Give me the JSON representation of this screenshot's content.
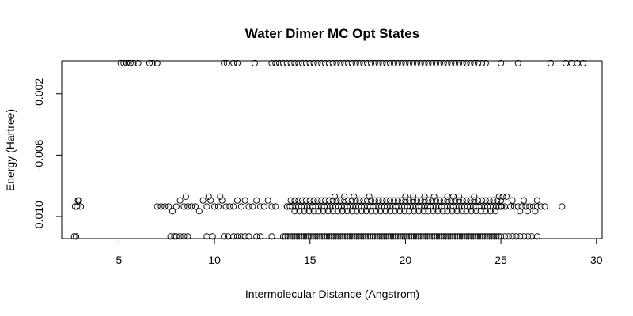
{
  "chart_data": {
    "type": "scatter",
    "title": "Water Dimer MC Opt States",
    "xlabel": "Intermolecular Distance (Angstrom)",
    "ylabel": "Energy (Hartree)",
    "xlim": [
      2.0,
      30.3
    ],
    "ylim": [
      -0.01144,
      0.00015
    ],
    "x_ticks": [
      5,
      10,
      15,
      20,
      25,
      30
    ],
    "x_tick_labels": [
      "5",
      "10",
      "15",
      "20",
      "25",
      "30"
    ],
    "y_ticks": [
      -0.002,
      -0.006,
      -0.01
    ],
    "y_tick_labels": [
      "-0.002",
      "-0.006",
      "-0.010"
    ],
    "grid": false,
    "legend": "none",
    "marker": "open-circle",
    "energy_levels": [
      0.0,
      -0.0087,
      -0.00895,
      -0.00935,
      -0.00965,
      -0.0113
    ],
    "series": [
      {
        "points": [
          [
            5.1,
            0.0
          ],
          [
            5.25,
            0.0
          ],
          [
            5.4,
            0.0
          ],
          [
            5.5,
            0.0
          ],
          [
            5.6,
            0.0
          ],
          [
            5.75,
            0.0
          ],
          [
            6.0,
            0.0
          ],
          [
            6.6,
            0.0
          ],
          [
            6.75,
            0.0
          ],
          [
            7.0,
            0.0
          ],
          [
            10.5,
            0.0
          ],
          [
            10.65,
            0.0
          ],
          [
            11.0,
            0.0
          ],
          [
            11.2,
            0.0
          ],
          [
            12.1,
            0.0
          ],
          [
            13.0,
            0.0
          ],
          [
            13.2,
            0.0
          ],
          [
            13.4,
            0.0
          ],
          [
            13.6,
            0.0
          ],
          [
            13.8,
            0.0
          ],
          [
            14.0,
            0.0
          ],
          [
            14.2,
            0.0
          ],
          [
            14.4,
            0.0
          ],
          [
            14.6,
            0.0
          ],
          [
            14.8,
            0.0
          ],
          [
            15.0,
            0.0
          ],
          [
            15.2,
            0.0
          ],
          [
            15.4,
            0.0
          ],
          [
            15.6,
            0.0
          ],
          [
            15.8,
            0.0
          ],
          [
            16.0,
            0.0
          ],
          [
            16.2,
            0.0
          ],
          [
            16.4,
            0.0
          ],
          [
            16.6,
            0.0
          ],
          [
            16.8,
            0.0
          ],
          [
            17.0,
            0.0
          ],
          [
            17.2,
            0.0
          ],
          [
            17.4,
            0.0
          ],
          [
            17.6,
            0.0
          ],
          [
            17.8,
            0.0
          ],
          [
            18.0,
            0.0
          ],
          [
            18.2,
            0.0
          ],
          [
            18.4,
            0.0
          ],
          [
            18.6,
            0.0
          ],
          [
            18.8,
            0.0
          ],
          [
            19.0,
            0.0
          ],
          [
            19.2,
            0.0
          ],
          [
            19.4,
            0.0
          ],
          [
            19.6,
            0.0
          ],
          [
            19.8,
            0.0
          ],
          [
            20.0,
            0.0
          ],
          [
            20.2,
            0.0
          ],
          [
            20.4,
            0.0
          ],
          [
            20.6,
            0.0
          ],
          [
            20.8,
            0.0
          ],
          [
            21.0,
            0.0
          ],
          [
            21.2,
            0.0
          ],
          [
            21.4,
            0.0
          ],
          [
            21.6,
            0.0
          ],
          [
            21.8,
            0.0
          ],
          [
            22.0,
            0.0
          ],
          [
            22.2,
            0.0
          ],
          [
            22.4,
            0.0
          ],
          [
            22.6,
            0.0
          ],
          [
            22.8,
            0.0
          ],
          [
            23.0,
            0.0
          ],
          [
            23.2,
            0.0
          ],
          [
            23.4,
            0.0
          ],
          [
            23.6,
            0.0
          ],
          [
            23.8,
            0.0
          ],
          [
            24.0,
            0.0
          ],
          [
            24.2,
            0.0
          ],
          [
            25.0,
            0.0
          ],
          [
            25.9,
            0.0
          ],
          [
            27.6,
            0.0
          ],
          [
            28.4,
            0.0
          ],
          [
            28.7,
            0.0
          ],
          [
            29.0,
            0.0
          ],
          [
            29.3,
            0.0
          ],
          [
            2.7,
            -0.00935
          ],
          [
            2.8,
            -0.00935
          ],
          [
            2.9,
            -0.00895
          ],
          [
            3.0,
            -0.00935
          ],
          [
            2.85,
            -0.00895
          ],
          [
            2.65,
            -0.0113
          ],
          [
            2.75,
            -0.0113
          ],
          [
            7.0,
            -0.00935
          ],
          [
            7.2,
            -0.00935
          ],
          [
            7.4,
            -0.00935
          ],
          [
            7.6,
            -0.00935
          ],
          [
            7.8,
            -0.00965
          ],
          [
            8.0,
            -0.00935
          ],
          [
            8.2,
            -0.00895
          ],
          [
            8.4,
            -0.00935
          ],
          [
            8.6,
            -0.00935
          ],
          [
            8.8,
            -0.00935
          ],
          [
            9.0,
            -0.00935
          ],
          [
            9.2,
            -0.00965
          ],
          [
            9.4,
            -0.00895
          ],
          [
            9.6,
            -0.00935
          ],
          [
            9.8,
            -0.00895
          ],
          [
            10.0,
            -0.00935
          ],
          [
            10.2,
            -0.00935
          ],
          [
            10.4,
            -0.00895
          ],
          [
            10.6,
            -0.00935
          ],
          [
            10.8,
            -0.00935
          ],
          [
            11.0,
            -0.00935
          ],
          [
            11.2,
            -0.00895
          ],
          [
            11.4,
            -0.00935
          ],
          [
            11.6,
            -0.00895
          ],
          [
            11.8,
            -0.00935
          ],
          [
            12.0,
            -0.00935
          ],
          [
            12.2,
            -0.00895
          ],
          [
            12.4,
            -0.00935
          ],
          [
            12.6,
            -0.00935
          ],
          [
            12.8,
            -0.00895
          ],
          [
            13.0,
            -0.00935
          ],
          [
            13.2,
            -0.00935
          ],
          [
            8.5,
            -0.0087
          ],
          [
            9.7,
            -0.0087
          ],
          [
            10.3,
            -0.0087
          ],
          [
            7.7,
            -0.0113
          ],
          [
            7.9,
            -0.0113
          ],
          [
            8.0,
            -0.0113
          ],
          [
            8.2,
            -0.0113
          ],
          [
            8.4,
            -0.0113
          ],
          [
            8.6,
            -0.0113
          ],
          [
            9.6,
            -0.0113
          ],
          [
            9.9,
            -0.0113
          ],
          [
            10.5,
            -0.0113
          ],
          [
            10.7,
            -0.0113
          ],
          [
            11.0,
            -0.0113
          ],
          [
            11.2,
            -0.0113
          ],
          [
            11.4,
            -0.0113
          ],
          [
            11.6,
            -0.0113
          ],
          [
            11.8,
            -0.0113
          ],
          [
            12.2,
            -0.0113
          ],
          [
            12.4,
            -0.0113
          ],
          [
            13.0,
            -0.0113
          ],
          [
            16.3,
            -0.0087
          ],
          [
            16.8,
            -0.0087
          ],
          [
            17.3,
            -0.0087
          ],
          [
            18.1,
            -0.0087
          ],
          [
            20.0,
            -0.0087
          ],
          [
            20.4,
            -0.0087
          ],
          [
            21.0,
            -0.0087
          ],
          [
            21.5,
            -0.0087
          ],
          [
            22.2,
            -0.0087
          ],
          [
            22.5,
            -0.0087
          ],
          [
            22.8,
            -0.0087
          ],
          [
            23.6,
            -0.0087
          ],
          [
            24.9,
            -0.0087
          ],
          [
            25.1,
            -0.0087
          ],
          [
            25.3,
            -0.0087
          ],
          [
            25.5,
            -0.00935
          ],
          [
            25.7,
            -0.00935
          ],
          [
            25.9,
            -0.00935
          ],
          [
            26.1,
            -0.00935
          ],
          [
            26.3,
            -0.00935
          ],
          [
            26.5,
            -0.00935
          ],
          [
            26.7,
            -0.00935
          ],
          [
            26.9,
            -0.00935
          ],
          [
            27.1,
            -0.00935
          ],
          [
            27.3,
            -0.00935
          ],
          [
            26.0,
            -0.00965
          ],
          [
            26.4,
            -0.00965
          ],
          [
            26.8,
            -0.00965
          ],
          [
            25.6,
            -0.00895
          ],
          [
            26.2,
            -0.00895
          ],
          [
            26.9,
            -0.00895
          ],
          [
            28.2,
            -0.00935
          ],
          [
            25.2,
            -0.0113
          ],
          [
            25.4,
            -0.0113
          ],
          [
            25.6,
            -0.0113
          ],
          [
            25.8,
            -0.0113
          ],
          [
            26.0,
            -0.0113
          ],
          [
            26.2,
            -0.0113
          ],
          [
            26.4,
            -0.0113
          ],
          [
            26.6,
            -0.0113
          ],
          [
            26.9,
            -0.0113
          ],
          [
            13.8,
            -0.00935
          ],
          [
            25.0,
            -0.00935
          ]
        ]
      }
    ],
    "dense_bands": [
      {
        "y": -0.00895,
        "x_from": 14.0,
        "x_to": 25.0,
        "step": 0.2
      },
      {
        "y": -0.00935,
        "x_from": 13.8,
        "x_to": 25.2,
        "step": 0.15
      },
      {
        "y": -0.00965,
        "x_from": 14.2,
        "x_to": 24.8,
        "step": 0.25
      },
      {
        "y": -0.0113,
        "x_from": 13.6,
        "x_to": 25.0,
        "step": 0.12
      }
    ]
  }
}
